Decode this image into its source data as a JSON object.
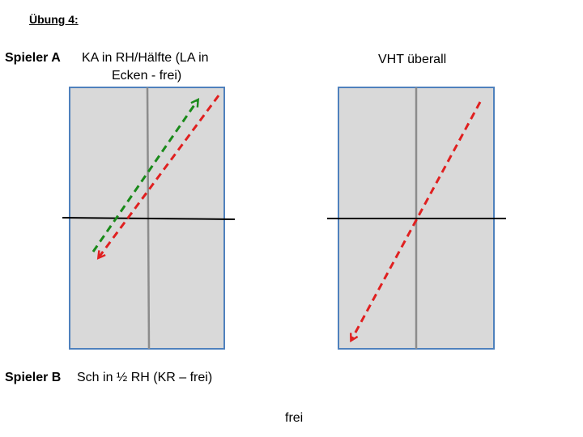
{
  "title": "Übung 4:",
  "player_a": {
    "label": "Spieler A",
    "line1": "KA in RH/Hälfte (LA in",
    "line2": "Ecken -  frei)"
  },
  "right_diagram": {
    "caption": "VHT überall"
  },
  "player_b": {
    "label": "Spieler B",
    "description": "Sch in ½ RH (KR – frei)"
  },
  "bottom_note": "frei",
  "colors": {
    "table_fill": "#d9d9d9",
    "table_border": "#4f81bd",
    "center_line": "#8c8c8c",
    "net": "#000000",
    "arrow_green": "#1a8a1a",
    "arrow_red": "#e02020"
  },
  "arrows": [
    {
      "table": "left",
      "color": "green",
      "style": "dashed",
      "direction": "up-right"
    },
    {
      "table": "left",
      "color": "red",
      "style": "dashed",
      "direction": "down-left"
    },
    {
      "table": "right",
      "color": "red",
      "style": "dashed",
      "direction": "down-left"
    }
  ]
}
